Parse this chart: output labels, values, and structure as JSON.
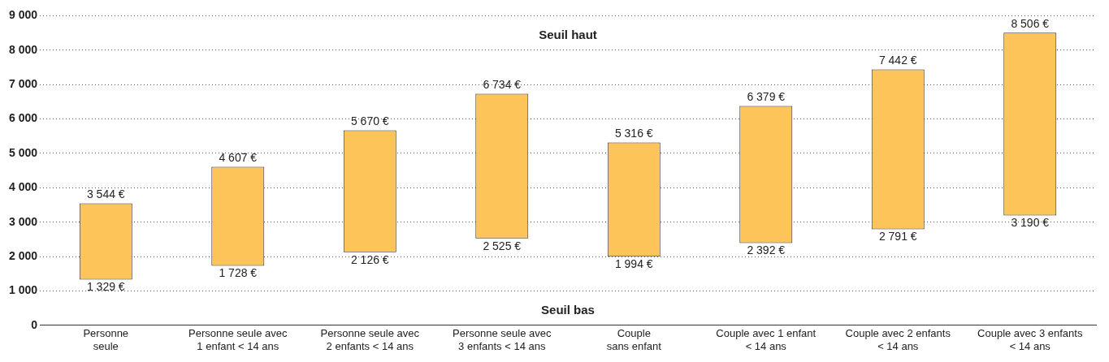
{
  "chart_data": {
    "type": "bar",
    "categories": [
      "Personne\nseule",
      "Personne seule avec\n1 enfant < 14 ans",
      "Personne seule avec\n2 enfants < 14 ans",
      "Personne seule avec\n3 enfants < 14 ans",
      "Couple\nsans enfant",
      "Couple avec 1 enfant\n< 14 ans",
      "Couple avec 2 enfants\n< 14 ans",
      "Couple avec 3 enfants\n< 14 ans"
    ],
    "base": [
      1329,
      1728,
      2126,
      2525,
      1994,
      2392,
      2791,
      3190
    ],
    "values": [
      2215,
      2879,
      3544,
      4209,
      3322,
      3987,
      4651,
      5316
    ],
    "color": "#fdc45a",
    "ylim": [
      0,
      9000
    ],
    "yticks": [
      {
        "value": 0,
        "label": "0"
      },
      {
        "value": 1000,
        "label": "1 000"
      },
      {
        "value": 2000,
        "label": "2 000"
      },
      {
        "value": 3000,
        "label": "3 000"
      },
      {
        "value": 4000,
        "label": "4 000"
      },
      {
        "value": 5000,
        "label": "5 000"
      },
      {
        "value": 6000,
        "label": "6 000"
      },
      {
        "value": 7000,
        "label": "7 000"
      },
      {
        "value": 8000,
        "label": "8 000"
      },
      {
        "value": 9000,
        "label": "9 000"
      }
    ],
    "grid": "y",
    "annotations": [
      "Seuil haut",
      "Seuil bas",
      {
        "text": "3 544 €",
        "x": "Personne\nseule",
        "y": 3544
      },
      {
        "text": "1 329 €",
        "x": "Personne\nseule",
        "y": 1329
      },
      {
        "text": "4 607 €",
        "x": "Personne seule avec\n1 enfant < 14 ans",
        "y": 4607
      },
      {
        "text": "1 728 €",
        "x": "Personne seule avec\n1 enfant < 14 ans",
        "y": 1728
      },
      {
        "text": "5 670 €",
        "x": "Personne seule avec\n2 enfants < 14 ans",
        "y": 5670
      },
      {
        "text": "2 126 €",
        "x": "Personne seule avec\n2 enfants < 14 ans",
        "y": 2126
      },
      {
        "text": "6 734 €",
        "x": "Personne seule avec\n3 enfants < 14 ans",
        "y": 6734
      },
      {
        "text": "2 525 €",
        "x": "Personne seule avec\n3 enfants < 14 ans",
        "y": 2525
      },
      {
        "text": "5 316 €",
        "x": "Couple\nsans enfant",
        "y": 5316
      },
      {
        "text": "1 994 €",
        "x": "Couple\nsans enfant",
        "y": 1994
      },
      {
        "text": "6 379 €",
        "x": "Couple avec 1 enfant\n< 14 ans",
        "y": 6379
      },
      {
        "text": "2 392 €",
        "x": "Couple avec 1 enfant\n< 14 ans",
        "y": 2392
      },
      {
        "text": "7 442 €",
        "x": "Couple avec 2 enfants\n< 14 ans",
        "y": 7442
      },
      {
        "text": "2 791 €",
        "x": "Couple avec 2 enfants\n< 14 ans",
        "y": 2791
      },
      {
        "text": "8 506 €",
        "x": "Couple avec 3 enfants\n< 14 ans",
        "y": 8506
      },
      {
        "text": "3 190 €",
        "x": "Couple avec 3 enfants\n< 14 ans",
        "y": 3190
      }
    ]
  }
}
